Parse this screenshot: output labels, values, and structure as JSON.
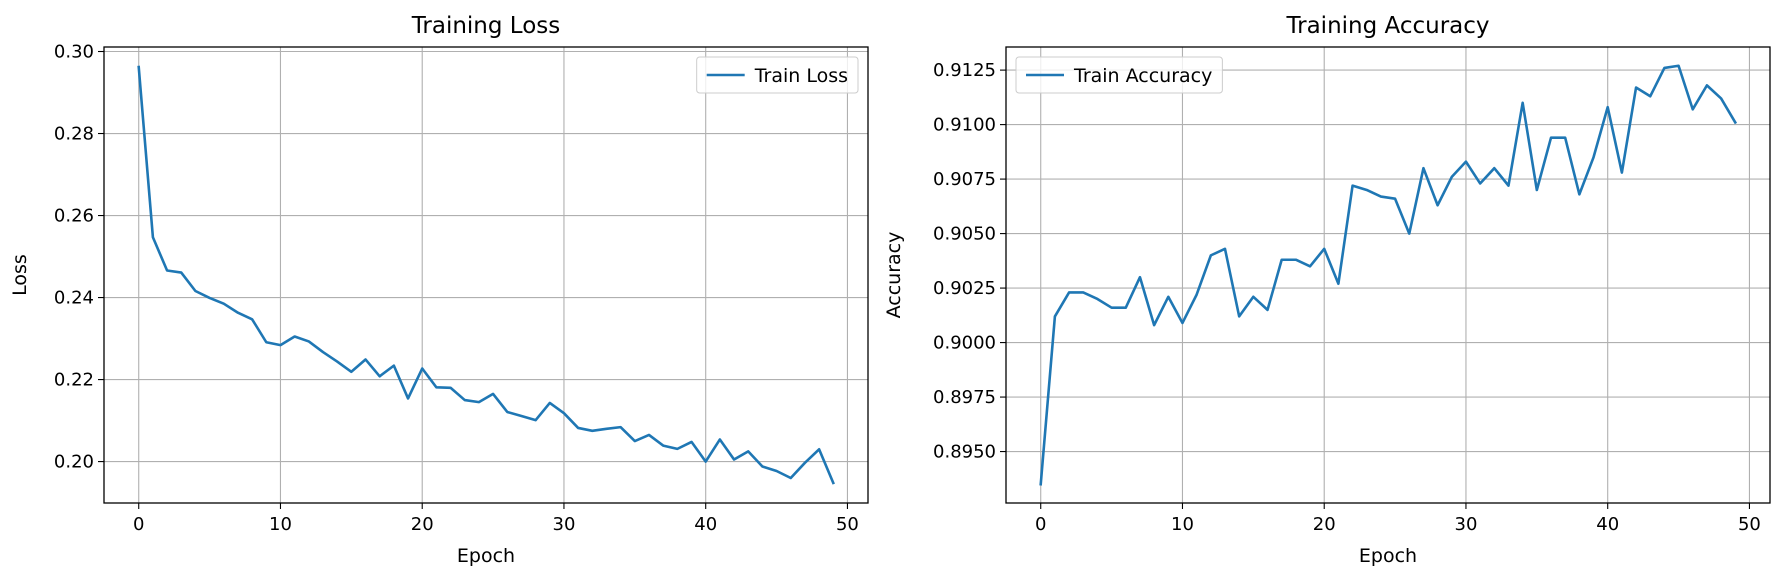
{
  "chart_data": [
    {
      "type": "line",
      "title": "Training Loss",
      "xlabel": "Epoch",
      "ylabel": "Loss",
      "xlim": [
        -2.45,
        51.45
      ],
      "ylim": [
        0.1899,
        0.3011
      ],
      "xticks": [
        0,
        10,
        20,
        30,
        40,
        50
      ],
      "yticks": [
        0.2,
        0.22,
        0.24,
        0.26,
        0.28,
        0.3
      ],
      "xtick_labels": [
        "0",
        "10",
        "20",
        "30",
        "40",
        "50"
      ],
      "ytick_labels": [
        "0.20",
        "0.22",
        "0.24",
        "0.26",
        "0.28",
        "0.30"
      ],
      "grid": true,
      "legend_position": "top-right",
      "series": [
        {
          "name": "Train Loss",
          "color": "#1f77b4",
          "x": [
            0,
            1,
            2,
            3,
            4,
            5,
            6,
            7,
            8,
            9,
            10,
            11,
            12,
            13,
            14,
            15,
            16,
            17,
            18,
            19,
            20,
            21,
            22,
            23,
            24,
            25,
            26,
            27,
            28,
            29,
            30,
            31,
            32,
            33,
            34,
            35,
            36,
            37,
            38,
            39,
            40,
            41,
            42,
            43,
            44,
            45,
            46,
            47,
            48,
            49
          ],
          "values": [
            0.2962,
            0.2547,
            0.2466,
            0.2461,
            0.2416,
            0.2399,
            0.2385,
            0.2363,
            0.2347,
            0.2291,
            0.2284,
            0.2305,
            0.2293,
            0.2267,
            0.2244,
            0.2219,
            0.2249,
            0.2208,
            0.2234,
            0.2154,
            0.2227,
            0.2181,
            0.218,
            0.215,
            0.2145,
            0.2165,
            0.2121,
            0.2111,
            0.2101,
            0.2143,
            0.2118,
            0.2082,
            0.2075,
            0.208,
            0.2084,
            0.205,
            0.2065,
            0.2039,
            0.2031,
            0.2048,
            0.2,
            0.2054,
            0.2005,
            0.2025,
            0.1988,
            0.1977,
            0.196,
            0.1997,
            0.203,
            0.1948
          ]
        }
      ]
    },
    {
      "type": "line",
      "title": "Training Accuracy",
      "xlabel": "Epoch",
      "ylabel": "Accuracy",
      "xlim": [
        -2.45,
        51.45
      ],
      "ylim": [
        0.89264,
        0.91356
      ],
      "xticks": [
        0,
        10,
        20,
        30,
        40,
        50
      ],
      "yticks": [
        0.895,
        0.8975,
        0.9,
        0.9025,
        0.905,
        0.9075,
        0.91,
        0.9125
      ],
      "xtick_labels": [
        "0",
        "10",
        "20",
        "30",
        "40",
        "50"
      ],
      "ytick_labels": [
        "0.8950",
        "0.8975",
        "0.9000",
        "0.9025",
        "0.9050",
        "0.9075",
        "0.9100",
        "0.9125"
      ],
      "grid": true,
      "legend_position": "top-left",
      "series": [
        {
          "name": "Train Accuracy",
          "color": "#1f77b4",
          "x": [
            0,
            1,
            2,
            3,
            4,
            5,
            6,
            7,
            8,
            9,
            10,
            11,
            12,
            13,
            14,
            15,
            16,
            17,
            18,
            19,
            20,
            21,
            22,
            23,
            24,
            25,
            26,
            27,
            28,
            29,
            30,
            31,
            32,
            33,
            34,
            35,
            36,
            37,
            38,
            39,
            40,
            41,
            42,
            43,
            44,
            45,
            46,
            47,
            48,
            49
          ],
          "values": [
            0.8935,
            0.9012,
            0.9023,
            0.9023,
            0.902,
            0.9016,
            0.9016,
            0.903,
            0.9008,
            0.9021,
            0.9009,
            0.9022,
            0.904,
            0.9043,
            0.9012,
            0.9021,
            0.9015,
            0.9038,
            0.9038,
            0.9035,
            0.9043,
            0.9027,
            0.9072,
            0.907,
            0.9067,
            0.9066,
            0.905,
            0.908,
            0.9063,
            0.9076,
            0.9083,
            0.9073,
            0.908,
            0.9072,
            0.911,
            0.907,
            0.9094,
            0.9094,
            0.9068,
            0.9085,
            0.9108,
            0.9078,
            0.9117,
            0.9113,
            0.9126,
            0.9127,
            0.9107,
            0.9118,
            0.9112,
            0.9101
          ]
        }
      ]
    }
  ]
}
